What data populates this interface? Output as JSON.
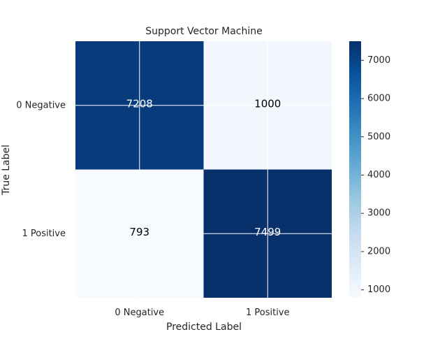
{
  "chart_data": {
    "type": "heatmap",
    "title": "Support Vector Machine",
    "xlabel": "Predicted Label",
    "ylabel": "True Label",
    "x_categories": [
      "0 Negative",
      "1 Positive"
    ],
    "y_categories": [
      "0 Negative",
      "1 Positive"
    ],
    "values": [
      [
        7208,
        1000
      ],
      [
        793,
        7499
      ]
    ],
    "colormap": "Blues",
    "colorbar": {
      "min": 793,
      "max": 7499,
      "ticks": [
        1000,
        2000,
        3000,
        4000,
        5000,
        6000,
        7000
      ]
    },
    "grid": true,
    "text_color_dark_cell": "#ffffff",
    "text_color_light_cell": "#000000"
  }
}
